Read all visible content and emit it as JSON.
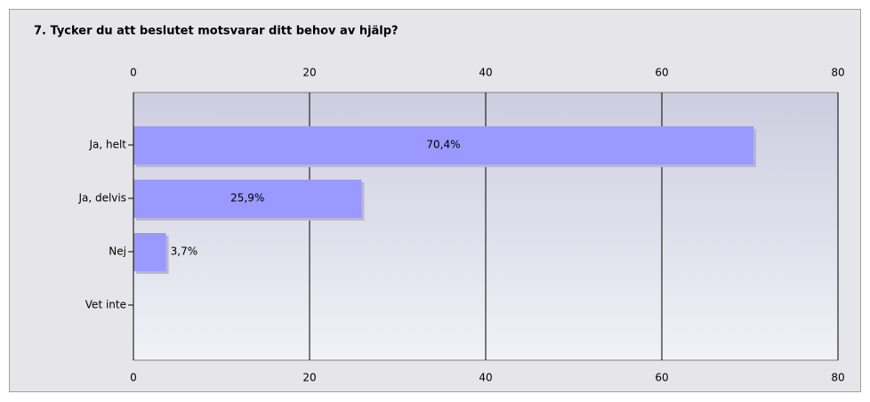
{
  "chart_data": {
    "type": "hbar",
    "title": "7. Tycker du att beslutet motsvarar ditt behov av hjälp?",
    "categories": [
      "Ja, helt",
      "Ja, delvis",
      "Nej",
      "Vet inte"
    ],
    "values": [
      70.4,
      25.9,
      3.7,
      0
    ],
    "value_labels": [
      "70,4%",
      "25,9%",
      "3,7%",
      null
    ],
    "color": "#9999ff",
    "xlim": [
      0,
      80
    ],
    "xticks": [
      0,
      20,
      40,
      60,
      80
    ],
    "grid": true
  }
}
